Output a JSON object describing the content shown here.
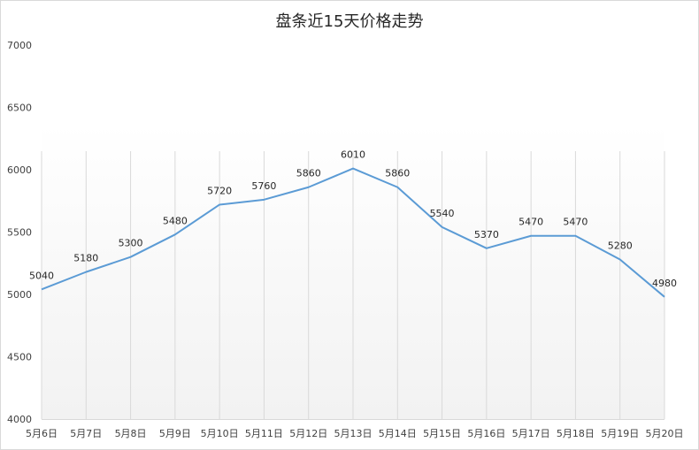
{
  "chart_data": {
    "type": "line",
    "title": "盘条近15天价格走势",
    "xlabel": "",
    "ylabel": "",
    "categories": [
      "5月6日",
      "5月7日",
      "5月8日",
      "5月9日",
      "5月10日",
      "5月11日",
      "5月12日",
      "5月13日",
      "5月14日",
      "5月15日",
      "5月16日",
      "5月17日",
      "5月18日",
      "5月19日",
      "5月20日"
    ],
    "series": [
      {
        "values": [
          5040,
          5180,
          5300,
          5480,
          5720,
          5760,
          5860,
          6010,
          5860,
          5540,
          5370,
          5470,
          5470,
          5280,
          4980
        ]
      }
    ],
    "ylim": [
      4000,
      7000
    ],
    "yticks": [
      4000,
      4500,
      5000,
      5500,
      6000,
      6500,
      7000
    ],
    "grid": "vertical",
    "legend": "none",
    "colors": {
      "line": "#5b9bd5",
      "grid": "#d9d9d9",
      "fill_top": "#ffffff",
      "fill_bottom": "#f2f2f2"
    }
  }
}
